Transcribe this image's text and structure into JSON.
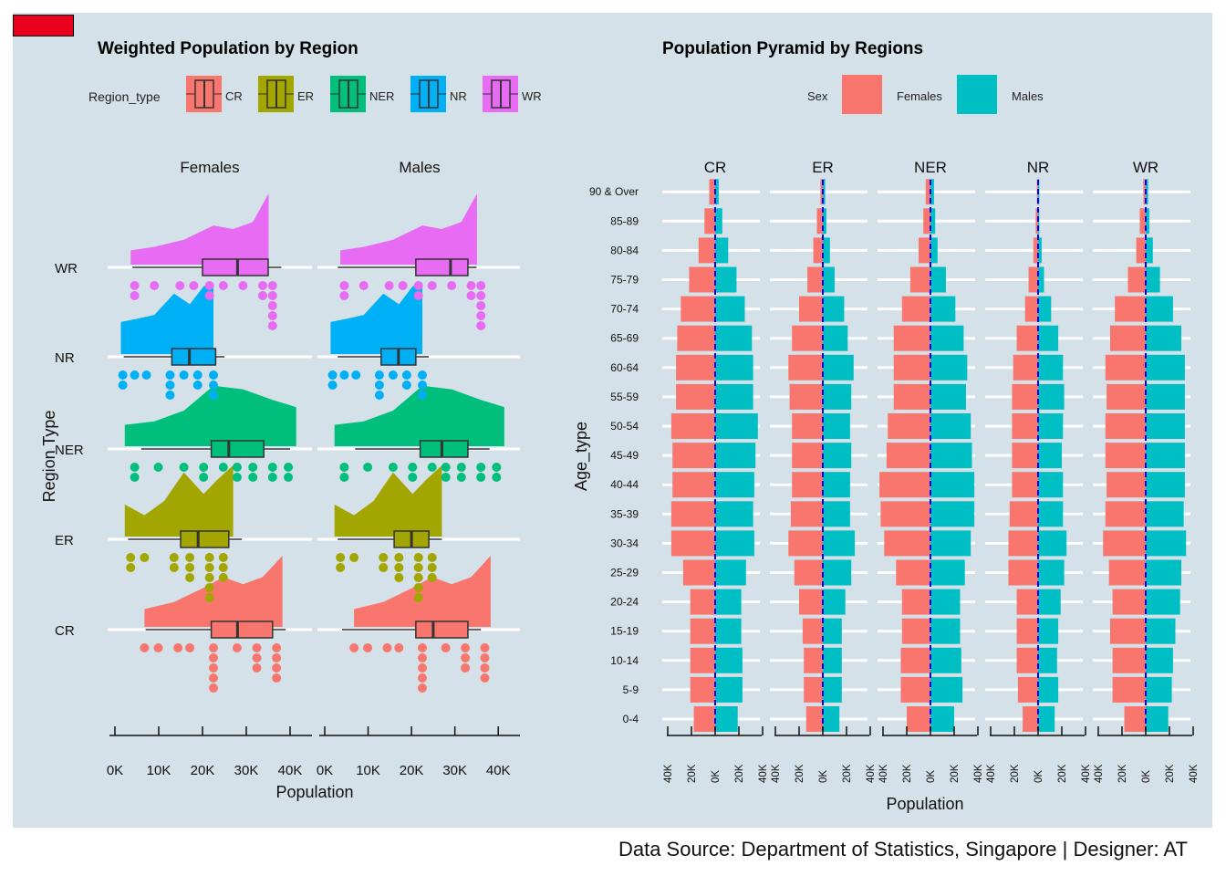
{
  "footer": {
    "source": "Data Source: Department of Statistics, Singapore | Designer: AT"
  },
  "colors": {
    "background_panel": "#d5e1e8",
    "CR": "#f8766d",
    "ER": "#a3a500",
    "NER": "#00bf7d",
    "NR": "#00b0f6",
    "WR": "#e76bf3",
    "Females": "#f8766d",
    "Males": "#00bfc4",
    "median_line": "#0000ff",
    "marker": "#e8001c"
  },
  "left_chart": {
    "title": "Weighted Population by Region",
    "legend_title": "Region_type",
    "legend": [
      "CR",
      "ER",
      "NER",
      "NR",
      "WR"
    ],
    "facets": [
      "Females",
      "Males"
    ],
    "xlabel": "Population",
    "ylabel": "Region Type",
    "xticks": [
      "0K",
      "10K",
      "20K",
      "30K",
      "40K"
    ],
    "regions": [
      "CR",
      "ER",
      "NER",
      "NR",
      "WR"
    ]
  },
  "right_chart": {
    "title": "Population Pyramid by Regions",
    "legend_title": "Sex",
    "legend": [
      "Females",
      "Males"
    ],
    "xlabel": "Population",
    "ylabel": "Age_type",
    "facets": [
      "CR",
      "ER",
      "NER",
      "NR",
      "WR"
    ],
    "xticks": [
      "40K",
      "20K",
      "0K",
      "20K",
      "40K"
    ]
  },
  "chart_data": [
    {
      "type": "raincloud",
      "title": "Weighted Population by Region",
      "facets": [
        "Females",
        "Males"
      ],
      "categories": [
        "CR",
        "ER",
        "NER",
        "NR",
        "WR"
      ],
      "xlim": [
        0,
        45000
      ],
      "boxes": {
        "Females": {
          "CR": {
            "min": 7000,
            "q1": 22000,
            "median": 28000,
            "q3": 36000,
            "max": 39000
          },
          "ER": {
            "min": 3000,
            "q1": 15000,
            "median": 19000,
            "q3": 26000,
            "max": 29000
          },
          "NER": {
            "min": 6000,
            "q1": 22000,
            "median": 26000,
            "q3": 34000,
            "max": 40000
          },
          "NR": {
            "min": 2000,
            "q1": 13000,
            "median": 17000,
            "q3": 23000,
            "max": 25000
          },
          "WR": {
            "min": 4000,
            "q1": 20000,
            "median": 28000,
            "q3": 35000,
            "max": 38000
          }
        },
        "Males": {
          "CR": {
            "min": 4000,
            "q1": 21000,
            "median": 25000,
            "q3": 33000,
            "max": 36000
          },
          "ER": {
            "min": 3000,
            "q1": 16000,
            "median": 20000,
            "q3": 24000,
            "max": 27000
          },
          "NER": {
            "min": 7000,
            "q1": 22000,
            "median": 27000,
            "q3": 33000,
            "max": 38000
          },
          "NR": {
            "min": 3000,
            "q1": 13000,
            "median": 17000,
            "q3": 21000,
            "max": 24000
          },
          "WR": {
            "min": 3000,
            "q1": 21000,
            "median": 29000,
            "q3": 33000,
            "max": 35000
          }
        }
      }
    },
    {
      "type": "bar",
      "title": "Population Pyramid by Regions",
      "xlabel": "Population",
      "ylabel": "Age_type",
      "xlim": [
        -40000,
        40000
      ],
      "categories": [
        "0-4",
        "5-9",
        "10-14",
        "15-19",
        "20-24",
        "25-29",
        "30-34",
        "35-39",
        "40-44",
        "45-49",
        "50-54",
        "55-59",
        "60-64",
        "65-69",
        "70-74",
        "75-79",
        "80-84",
        "85-89",
        "90 & Over"
      ],
      "regions": {
        "CR": {
          "Females": [
            18000,
            21000,
            21000,
            21000,
            21000,
            27000,
            37000,
            37000,
            36000,
            36000,
            37000,
            33000,
            33000,
            32000,
            29000,
            22000,
            14000,
            9000,
            5000
          ],
          "Males": [
            19000,
            23000,
            23000,
            22000,
            22000,
            26000,
            33000,
            32000,
            33000,
            34000,
            36000,
            32000,
            32000,
            31000,
            25000,
            18000,
            11000,
            6000,
            3000
          ]
        },
        "ER": {
          "Females": [
            14000,
            16000,
            16000,
            17000,
            20000,
            24000,
            29000,
            27000,
            26000,
            26000,
            26000,
            28000,
            29000,
            26000,
            20000,
            13000,
            8000,
            5000,
            2000
          ],
          "Males": [
            14000,
            16000,
            16000,
            16000,
            19000,
            24000,
            27000,
            23000,
            23000,
            24000,
            23000,
            24000,
            26000,
            21000,
            18000,
            10000,
            6000,
            3000,
            2000
          ]
        },
        "NER": {
          "Females": [
            20000,
            25000,
            25000,
            24000,
            24000,
            29000,
            39000,
            42000,
            43000,
            37000,
            36000,
            31000,
            31000,
            31000,
            24000,
            17000,
            10000,
            6000,
            4000
          ],
          "Males": [
            20000,
            27000,
            26000,
            25000,
            25000,
            29000,
            34000,
            37000,
            37000,
            35000,
            34000,
            30000,
            31000,
            28000,
            21000,
            13000,
            6000,
            4000,
            3000
          ]
        },
        "NR": {
          "Females": [
            13000,
            17000,
            18000,
            18000,
            18000,
            25000,
            25000,
            24000,
            22000,
            22000,
            22000,
            22000,
            21000,
            18000,
            11000,
            8000,
            4000,
            2000,
            1000
          ],
          "Males": [
            14000,
            17000,
            16000,
            17000,
            19000,
            22000,
            24000,
            21000,
            21000,
            20000,
            21000,
            22000,
            21000,
            17000,
            11000,
            5000,
            3000,
            1000,
            1000
          ]
        },
        "WR": {
          "Females": [
            18000,
            28000,
            28000,
            30000,
            28000,
            31000,
            36000,
            34000,
            33000,
            34000,
            34000,
            33000,
            34000,
            30000,
            26000,
            15000,
            8000,
            5000,
            2000
          ],
          "Males": [
            19000,
            22000,
            23000,
            25000,
            29000,
            30000,
            34000,
            32000,
            33000,
            33000,
            33000,
            33000,
            33000,
            30000,
            23000,
            12000,
            6000,
            3000,
            2000
          ]
        }
      }
    }
  ]
}
